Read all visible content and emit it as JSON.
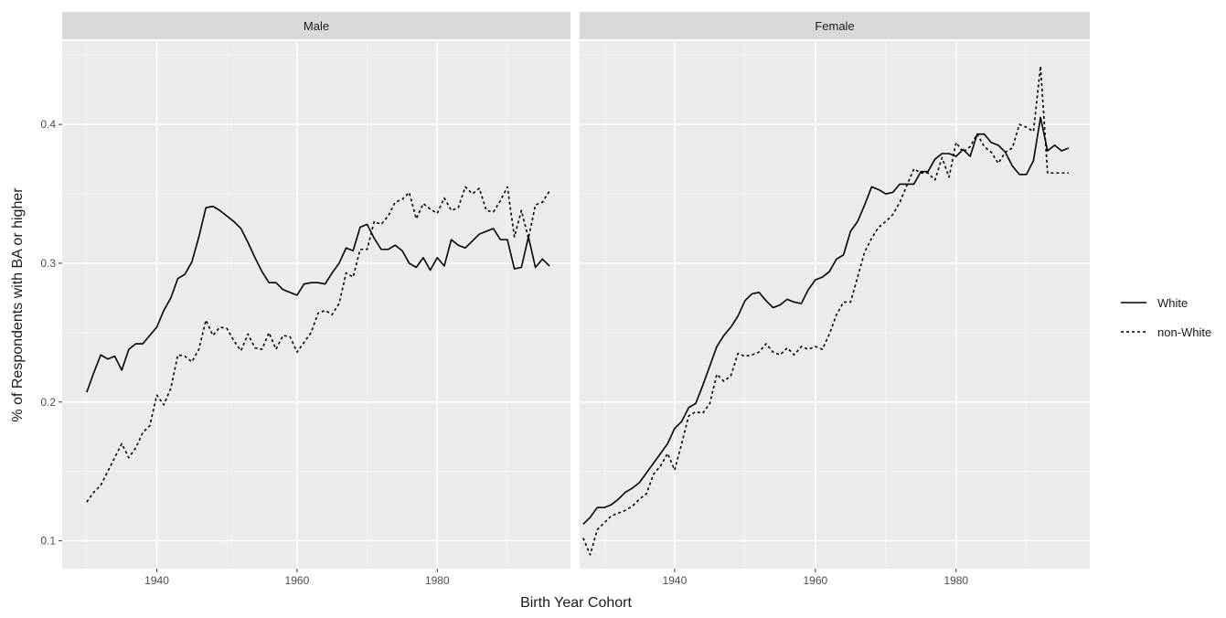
{
  "chart_data": {
    "type": "line",
    "xlabel": "Birth Year Cohort",
    "ylabel": "% of Respondents with BA or higher",
    "xlim": [
      1926.5,
      1999
    ],
    "ylim": [
      0.08,
      0.46
    ],
    "x_ticks": [
      1940,
      1960,
      1980
    ],
    "y_ticks": [
      0.1,
      0.2,
      0.3,
      0.4
    ],
    "x_tick_labels": [
      "1940",
      "1960",
      "1980"
    ],
    "y_tick_labels": [
      "0.1",
      "0.2",
      "0.3",
      "0.4"
    ],
    "grid": true,
    "legend_position": "right",
    "legend": [
      {
        "label": "White",
        "linetype": "solid"
      },
      {
        "label": "non-White",
        "linetype": "dashed"
      }
    ],
    "panels": [
      {
        "title": "Male",
        "series": [
          {
            "name": "White",
            "linetype": "solid",
            "x": [
              1930,
              1931,
              1932,
              1933,
              1934,
              1935,
              1936,
              1937,
              1938,
              1939,
              1940,
              1941,
              1942,
              1943,
              1944,
              1945,
              1946,
              1947,
              1948,
              1949,
              1950,
              1951,
              1952,
              1953,
              1954,
              1955,
              1956,
              1957,
              1958,
              1959,
              1960,
              1961,
              1962,
              1963,
              1964,
              1965,
              1966,
              1967,
              1968,
              1969,
              1970,
              1971,
              1972,
              1973,
              1974,
              1975,
              1976,
              1977,
              1978,
              1979,
              1980,
              1981,
              1982,
              1983,
              1984,
              1985,
              1986,
              1987,
              1988,
              1989,
              1990,
              1991,
              1992,
              1993,
              1994,
              1995,
              1996
            ],
            "y": [
              0.207,
              0.221,
              0.234,
              0.231,
              0.233,
              0.223,
              0.238,
              0.242,
              0.242,
              0.248,
              0.254,
              0.266,
              0.275,
              0.289,
              0.292,
              0.301,
              0.319,
              0.34,
              0.341,
              0.338,
              0.334,
              0.33,
              0.325,
              0.315,
              0.304,
              0.294,
              0.286,
              0.286,
              0.281,
              0.279,
              0.277,
              0.285,
              0.286,
              0.286,
              0.285,
              0.293,
              0.3,
              0.311,
              0.309,
              0.326,
              0.328,
              0.318,
              0.31,
              0.31,
              0.313,
              0.309,
              0.3,
              0.297,
              0.304,
              0.295,
              0.304,
              0.298,
              0.317,
              0.313,
              0.311,
              0.316,
              0.321,
              0.323,
              0.325,
              0.317,
              0.317,
              0.296,
              0.297,
              0.319,
              0.297,
              0.303,
              0.298
            ]
          },
          {
            "name": "non-White",
            "linetype": "dashed",
            "x": [
              1930,
              1931,
              1932,
              1933,
              1934,
              1935,
              1936,
              1937,
              1938,
              1939,
              1940,
              1941,
              1942,
              1943,
              1944,
              1945,
              1946,
              1947,
              1948,
              1949,
              1950,
              1951,
              1952,
              1953,
              1954,
              1955,
              1956,
              1957,
              1958,
              1959,
              1960,
              1961,
              1962,
              1963,
              1964,
              1965,
              1966,
              1967,
              1968,
              1969,
              1970,
              1971,
              1972,
              1973,
              1974,
              1975,
              1976,
              1977,
              1978,
              1979,
              1980,
              1981,
              1982,
              1983,
              1984,
              1985,
              1986,
              1987,
              1988,
              1989,
              1990,
              1991,
              1992,
              1993,
              1994,
              1995,
              1996
            ],
            "y": [
              0.128,
              0.135,
              0.14,
              0.15,
              0.16,
              0.17,
              0.16,
              0.167,
              0.178,
              0.183,
              0.205,
              0.198,
              0.21,
              0.234,
              0.233,
              0.229,
              0.238,
              0.259,
              0.248,
              0.254,
              0.253,
              0.244,
              0.237,
              0.249,
              0.239,
              0.238,
              0.25,
              0.238,
              0.248,
              0.247,
              0.236,
              0.243,
              0.25,
              0.264,
              0.266,
              0.263,
              0.271,
              0.293,
              0.29,
              0.31,
              0.31,
              0.33,
              0.328,
              0.334,
              0.344,
              0.346,
              0.351,
              0.332,
              0.343,
              0.339,
              0.336,
              0.347,
              0.338,
              0.34,
              0.355,
              0.35,
              0.354,
              0.338,
              0.337,
              0.345,
              0.355,
              0.319,
              0.338,
              0.318,
              0.342,
              0.344,
              0.352
            ]
          }
        ]
      },
      {
        "title": "Female",
        "series": [
          {
            "name": "White",
            "linetype": "solid",
            "x": [
              1927,
              1928,
              1929,
              1930,
              1931,
              1932,
              1933,
              1934,
              1935,
              1936,
              1937,
              1938,
              1939,
              1940,
              1941,
              1942,
              1943,
              1944,
              1945,
              1946,
              1947,
              1948,
              1949,
              1950,
              1951,
              1952,
              1953,
              1954,
              1955,
              1956,
              1957,
              1958,
              1959,
              1960,
              1961,
              1962,
              1963,
              1964,
              1965,
              1966,
              1967,
              1968,
              1969,
              1970,
              1971,
              1972,
              1973,
              1974,
              1975,
              1976,
              1977,
              1978,
              1979,
              1980,
              1981,
              1982,
              1983,
              1984,
              1985,
              1986,
              1987,
              1988,
              1989,
              1990,
              1991,
              1992,
              1993,
              1994,
              1995,
              1996
            ],
            "y": [
              0.112,
              0.117,
              0.124,
              0.124,
              0.126,
              0.13,
              0.135,
              0.138,
              0.142,
              0.149,
              0.156,
              0.163,
              0.17,
              0.181,
              0.186,
              0.196,
              0.199,
              0.212,
              0.226,
              0.24,
              0.248,
              0.254,
              0.262,
              0.273,
              0.278,
              0.279,
              0.273,
              0.268,
              0.27,
              0.274,
              0.272,
              0.271,
              0.281,
              0.288,
              0.29,
              0.294,
              0.303,
              0.306,
              0.323,
              0.33,
              0.342,
              0.355,
              0.353,
              0.35,
              0.351,
              0.357,
              0.357,
              0.357,
              0.366,
              0.366,
              0.375,
              0.379,
              0.379,
              0.377,
              0.382,
              0.377,
              0.393,
              0.393,
              0.387,
              0.385,
              0.38,
              0.37,
              0.364,
              0.364,
              0.374,
              0.405,
              0.381,
              0.385,
              0.381,
              0.383
            ]
          },
          {
            "name": "non-White",
            "linetype": "dashed",
            "x": [
              1927,
              1928,
              1929,
              1930,
              1931,
              1932,
              1933,
              1934,
              1935,
              1936,
              1937,
              1938,
              1939,
              1940,
              1941,
              1942,
              1943,
              1944,
              1945,
              1946,
              1947,
              1948,
              1949,
              1950,
              1951,
              1952,
              1953,
              1954,
              1955,
              1956,
              1957,
              1958,
              1959,
              1960,
              1961,
              1962,
              1963,
              1964,
              1965,
              1966,
              1967,
              1968,
              1969,
              1970,
              1971,
              1972,
              1973,
              1974,
              1975,
              1976,
              1977,
              1978,
              1979,
              1980,
              1981,
              1982,
              1983,
              1984,
              1985,
              1986,
              1987,
              1988,
              1989,
              1990,
              1991,
              1992,
              1993,
              1994,
              1995,
              1996
            ],
            "y": [
              0.102,
              0.09,
              0.108,
              0.113,
              0.118,
              0.12,
              0.122,
              0.125,
              0.13,
              0.134,
              0.148,
              0.154,
              0.163,
              0.151,
              0.17,
              0.19,
              0.193,
              0.192,
              0.199,
              0.22,
              0.215,
              0.219,
              0.235,
              0.233,
              0.234,
              0.236,
              0.242,
              0.236,
              0.234,
              0.239,
              0.234,
              0.24,
              0.238,
              0.24,
              0.238,
              0.249,
              0.263,
              0.272,
              0.272,
              0.29,
              0.308,
              0.318,
              0.326,
              0.33,
              0.335,
              0.344,
              0.356,
              0.368,
              0.365,
              0.365,
              0.36,
              0.376,
              0.362,
              0.387,
              0.38,
              0.384,
              0.393,
              0.384,
              0.38,
              0.372,
              0.38,
              0.383,
              0.4,
              0.398,
              0.395,
              0.442,
              0.365,
              0.365,
              0.365,
              0.365
            ]
          }
        ]
      }
    ]
  }
}
